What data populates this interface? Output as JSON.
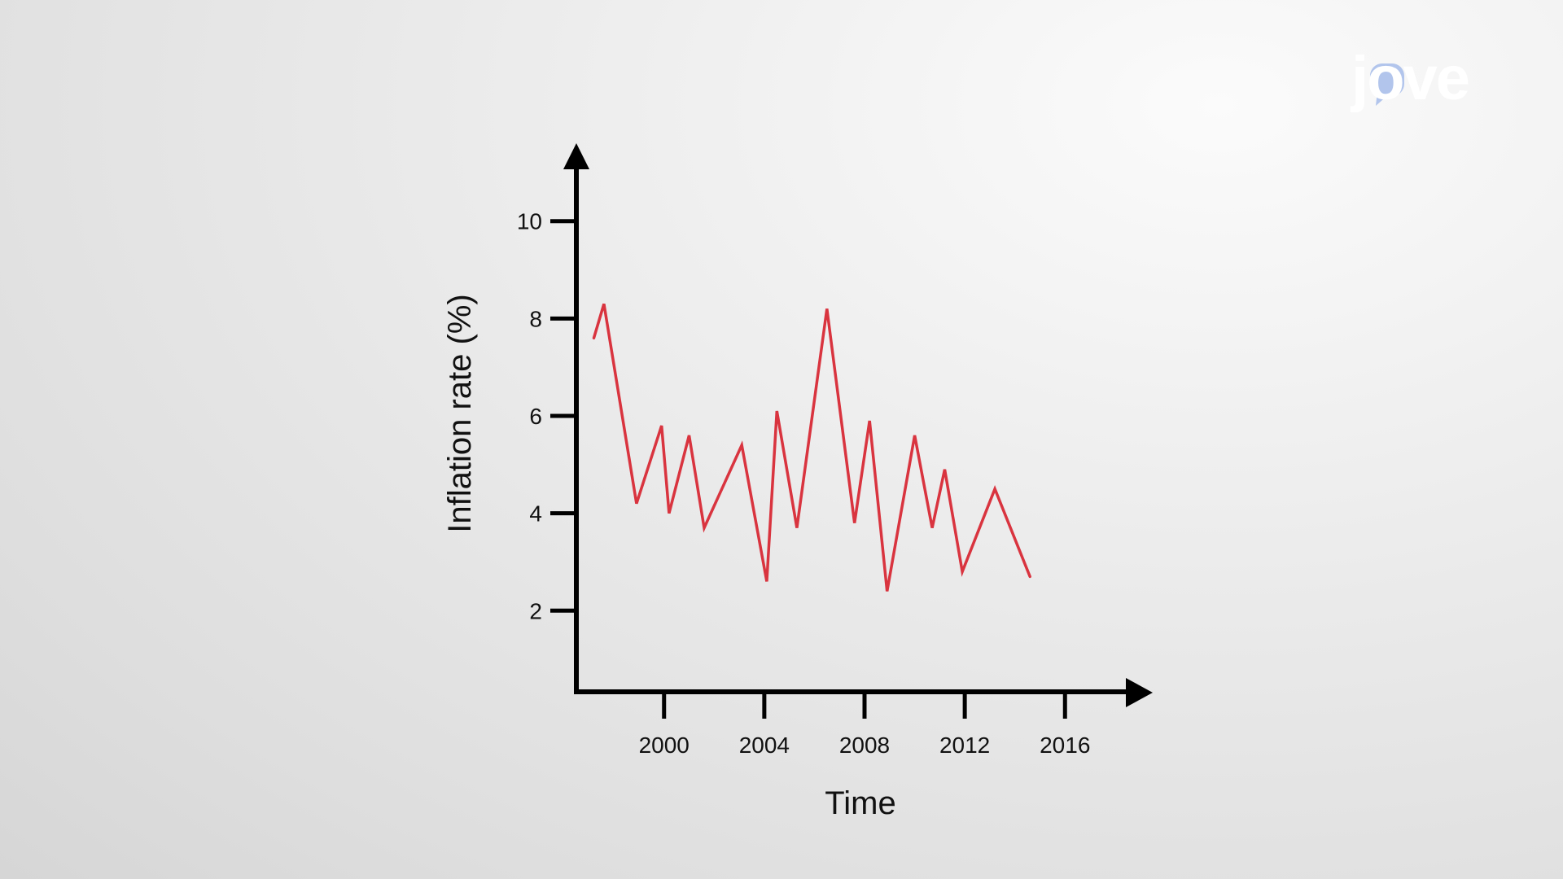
{
  "brand": {
    "logo_text": "jove",
    "accent_color": "#9bb4e8"
  },
  "chart_data": {
    "type": "line",
    "title": "",
    "xlabel": "Time",
    "ylabel": "Inflation rate (%)",
    "xlim": [
      1996.5,
      2019.5
    ],
    "ylim": [
      0.3,
      11.6
    ],
    "x_ticks": [
      2000,
      2004,
      2008,
      2012,
      2016
    ],
    "y_ticks": [
      2,
      4,
      6,
      8,
      10
    ],
    "grid": false,
    "legend": "none",
    "line_color": "#d9343f",
    "series": [
      {
        "x": [
          1997.2,
          1997.6,
          1998.9,
          1999.9,
          2000.2,
          2001.0,
          2001.6,
          2003.1,
          2004.1,
          2004.5,
          2005.3,
          2006.5,
          2007.6,
          2008.2,
          2008.9,
          2010.0,
          2010.7,
          2011.2,
          2011.9,
          2013.2,
          2014.6
        ],
        "y": [
          7.6,
          8.3,
          4.2,
          5.8,
          4.0,
          5.6,
          3.7,
          5.4,
          2.6,
          6.1,
          3.7,
          8.2,
          3.8,
          5.9,
          2.4,
          5.6,
          3.7,
          4.9,
          2.8,
          4.5,
          2.7
        ]
      }
    ]
  }
}
